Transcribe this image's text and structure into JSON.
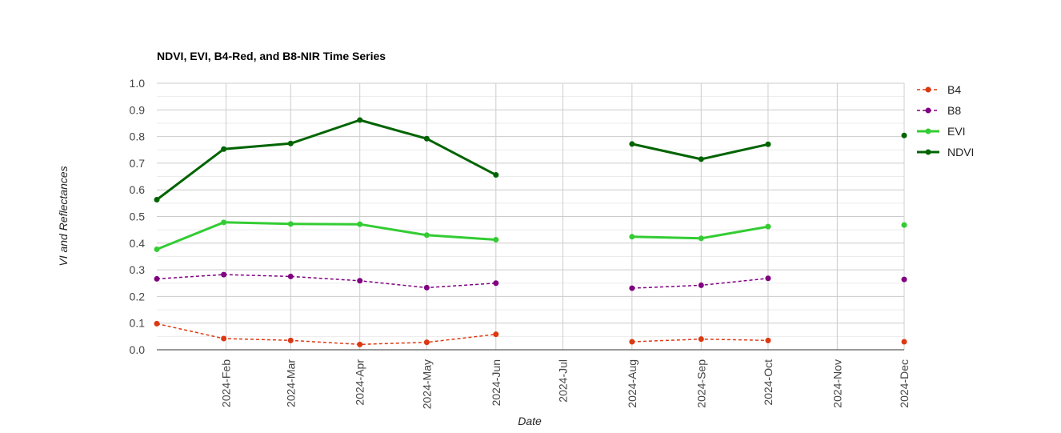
{
  "chart_data": {
    "type": "line",
    "title": "NDVI, EVI, B4-Red, and B8-NIR Time Series",
    "xlabel": "Date",
    "ylabel": "VI and Reflectances",
    "ylim": [
      0,
      1
    ],
    "yticks": [
      "0.0",
      "0.1",
      "0.2",
      "0.3",
      "0.4",
      "0.5",
      "0.6",
      "0.7",
      "0.8",
      "0.9",
      "1.0"
    ],
    "xlim": [
      "2024-01-01",
      "2024-12-01"
    ],
    "xticks": [
      "2024-Feb",
      "2024-Mar",
      "2024-Apr",
      "2024-May",
      "2024-Jun",
      "2024-Jul",
      "2024-Aug",
      "2024-Sep",
      "2024-Oct",
      "2024-Nov",
      "2024-Dec"
    ],
    "grid": true,
    "legend_position": "right",
    "series": [
      {
        "name": "B4",
        "color": "#dc3912",
        "dashed": true,
        "bold": false,
        "points": [
          {
            "x": "2024-01-01",
            "y": 0.098
          },
          {
            "x": "2024-01-31",
            "y": 0.042
          },
          {
            "x": "2024-03-01",
            "y": 0.035
          },
          {
            "x": "2024-04-01",
            "y": 0.02
          },
          {
            "x": "2024-05-01",
            "y": 0.028
          },
          {
            "x": "2024-06-01",
            "y": 0.058
          },
          {
            "x": "2024-07-01",
            "y": null
          },
          {
            "x": "2024-08-01",
            "y": 0.03
          },
          {
            "x": "2024-09-01",
            "y": 0.04
          },
          {
            "x": "2024-10-01",
            "y": 0.035
          },
          {
            "x": "2024-11-01",
            "y": null
          },
          {
            "x": "2024-12-01",
            "y": 0.03
          }
        ]
      },
      {
        "name": "B8",
        "color": "#800080",
        "dashed": true,
        "bold": false,
        "points": [
          {
            "x": "2024-01-01",
            "y": 0.266
          },
          {
            "x": "2024-01-31",
            "y": 0.282
          },
          {
            "x": "2024-03-01",
            "y": 0.275
          },
          {
            "x": "2024-04-01",
            "y": 0.259
          },
          {
            "x": "2024-05-01",
            "y": 0.233
          },
          {
            "x": "2024-06-01",
            "y": 0.25
          },
          {
            "x": "2024-07-01",
            "y": null
          },
          {
            "x": "2024-08-01",
            "y": 0.231
          },
          {
            "x": "2024-09-01",
            "y": 0.242
          },
          {
            "x": "2024-10-01",
            "y": 0.268
          },
          {
            "x": "2024-11-01",
            "y": null
          },
          {
            "x": "2024-12-01",
            "y": 0.264
          }
        ]
      },
      {
        "name": "EVI",
        "color": "#33cc33",
        "dashed": false,
        "bold": true,
        "points": [
          {
            "x": "2024-01-01",
            "y": 0.377
          },
          {
            "x": "2024-01-31",
            "y": 0.478
          },
          {
            "x": "2024-03-01",
            "y": 0.472
          },
          {
            "x": "2024-04-01",
            "y": 0.471
          },
          {
            "x": "2024-05-01",
            "y": 0.43
          },
          {
            "x": "2024-06-01",
            "y": 0.413
          },
          {
            "x": "2024-07-01",
            "y": null
          },
          {
            "x": "2024-08-01",
            "y": 0.424
          },
          {
            "x": "2024-09-01",
            "y": 0.418
          },
          {
            "x": "2024-10-01",
            "y": 0.462
          },
          {
            "x": "2024-11-01",
            "y": null
          },
          {
            "x": "2024-12-01",
            "y": 0.468
          }
        ]
      },
      {
        "name": "NDVI",
        "color": "#006400",
        "dashed": false,
        "bold": true,
        "points": [
          {
            "x": "2024-01-01",
            "y": 0.563
          },
          {
            "x": "2024-01-31",
            "y": 0.753
          },
          {
            "x": "2024-03-01",
            "y": 0.774
          },
          {
            "x": "2024-04-01",
            "y": 0.862
          },
          {
            "x": "2024-05-01",
            "y": 0.792
          },
          {
            "x": "2024-06-01",
            "y": 0.656
          },
          {
            "x": "2024-07-01",
            "y": null
          },
          {
            "x": "2024-08-01",
            "y": 0.772
          },
          {
            "x": "2024-09-01",
            "y": 0.715
          },
          {
            "x": "2024-10-01",
            "y": 0.771
          },
          {
            "x": "2024-11-01",
            "y": null
          },
          {
            "x": "2024-12-01",
            "y": 0.804
          }
        ]
      }
    ]
  }
}
